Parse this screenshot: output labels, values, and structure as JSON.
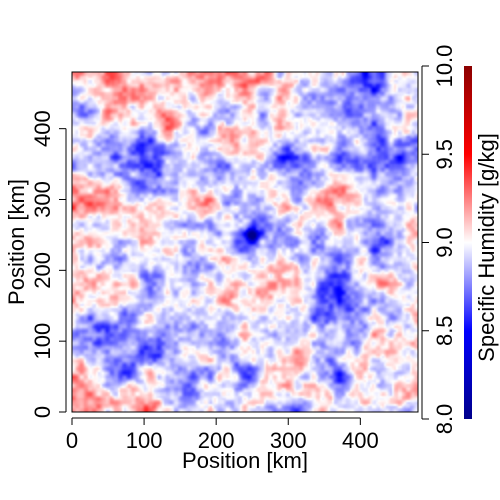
{
  "chart_data": {
    "type": "heatmap",
    "title": "",
    "xlabel": "Position [km]",
    "ylabel": "Position [km]",
    "xlim": [
      0,
      480
    ],
    "ylim": [
      0,
      480
    ],
    "xticks": [
      0,
      100,
      200,
      300,
      400
    ],
    "yticks": [
      0,
      100,
      200,
      300,
      400
    ],
    "colorbar": {
      "label": "Specific Humidity [g/kg]",
      "range": [
        8.0,
        10.0
      ],
      "ticks": [
        "8.0",
        "8.5",
        "9.0",
        "9.5",
        "10.0"
      ],
      "colors": [
        "#00008b",
        "#0000ff",
        "#ffffff",
        "#ff0000",
        "#8b0000"
      ]
    },
    "field": {
      "description": "noisy 2D specific humidity field, values mostly between 8.3 and 9.5 g/kg",
      "min_feature": {
        "x": 250,
        "y": 250,
        "value": 8.0
      }
    },
    "grid": false,
    "legend": "colorbar-right"
  }
}
